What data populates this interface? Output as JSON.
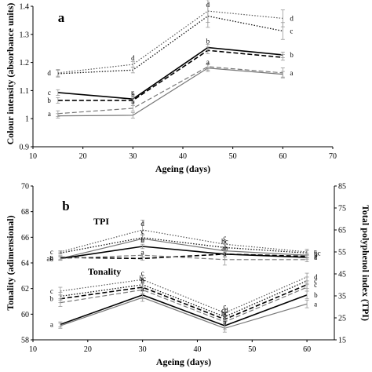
{
  "chart_data": [
    {
      "type": "line",
      "panel_label": "a",
      "xlabel": "Ageing (days)",
      "ylabel": "Colour intensity (absorbance units)",
      "xlim": [
        10,
        70
      ],
      "ylim": [
        0.9,
        1.4
      ],
      "xticks": [
        10,
        20,
        30,
        40,
        50,
        60,
        70
      ],
      "yticks": [
        0.9,
        1.0,
        1.1,
        1.2,
        1.3,
        1.4
      ],
      "ytick_labels": [
        "0.9",
        "1",
        "1.1",
        "1.2",
        "1.3",
        "1.4"
      ],
      "x": [
        15,
        30,
        45,
        60
      ],
      "series": [
        {
          "values": [
            1.163,
            1.193,
            1.383,
            1.357
          ],
          "err": [
            0.012,
            0.01,
            0.04,
            0.03
          ],
          "letters": [
            "d",
            "d",
            "d",
            "d"
          ],
          "color": "#555555",
          "dash": "1.5,2",
          "width": 1.2
        },
        {
          "values": [
            1.16,
            1.173,
            1.365,
            1.312
          ],
          "err": [
            0.012,
            0.01,
            0.04,
            0.03
          ],
          "letters": [
            "",
            "",
            "",
            "c"
          ],
          "color": "#111111",
          "dash": "1.5,2",
          "width": 1.3
        },
        {
          "values": [
            1.093,
            1.07,
            1.253,
            1.227
          ],
          "err": [
            0.01,
            0.008,
            0.012,
            0.01
          ],
          "letters": [
            "c",
            "c",
            "b",
            "b"
          ],
          "color": "#000000",
          "dash": "",
          "width": 1.6
        },
        {
          "values": [
            1.065,
            1.065,
            1.243,
            1.218
          ],
          "err": [
            0.01,
            0.008,
            0.012,
            0.01
          ],
          "letters": [
            "b",
            "b",
            "",
            ""
          ],
          "color": "#000000",
          "dash": "6,3",
          "width": 1.6
        },
        {
          "values": [
            1.018,
            1.037,
            1.185,
            1.163
          ],
          "err": [
            0.01,
            0.01,
            0.012,
            0.018
          ],
          "letters": [
            "a",
            "a",
            "",
            "a"
          ],
          "color": "#777777",
          "dash": "6,3",
          "width": 1.2
        },
        {
          "values": [
            1.01,
            1.012,
            1.18,
            1.158
          ],
          "err": [
            0.008,
            0.01,
            0.012,
            0.01
          ],
          "letters": [
            "",
            "",
            "a",
            ""
          ],
          "color": "#777777",
          "dash": "",
          "width": 1.2
        }
      ]
    },
    {
      "type": "line",
      "panel_label": "b",
      "xlabel": "Ageing (days)",
      "ylabel": "Tonality (adimensional)",
      "y2label": "Total polyphenol index (TPI)",
      "xlim": [
        10,
        65
      ],
      "ylim": [
        58,
        70
      ],
      "y2lim": [
        15,
        85
      ],
      "xticks": [
        10,
        20,
        30,
        40,
        50,
        60
      ],
      "yticks": [
        58,
        60,
        62,
        64,
        66,
        68,
        70
      ],
      "y2ticks": [
        15,
        25,
        35,
        45,
        55,
        65,
        75,
        85
      ],
      "group_labels": {
        "tpi": "TPI",
        "tonality": "Tonality"
      },
      "x": [
        15,
        30,
        45,
        60
      ],
      "tpi_series": [
        {
          "values": [
            55.0,
            65.0,
            58.5,
            55.0
          ],
          "err": [
            0.5,
            4.5,
            1.5,
            1.2
          ],
          "letters": [
            "c",
            "d",
            "c",
            "c"
          ],
          "color": "#555555",
          "dash": "1.5,2",
          "width": 1.2
        },
        {
          "values": [
            54.5,
            61.5,
            57.0,
            54.5
          ],
          "err": [
            0.5,
            1.5,
            1.5,
            1.0
          ],
          "letters": [
            "",
            "c",
            "bc",
            "bc"
          ],
          "color": "#111111",
          "dash": "1.5,2",
          "width": 1.3
        },
        {
          "values": [
            52.0,
            61.0,
            55.5,
            53.5
          ],
          "err": [
            0.8,
            1.5,
            1.0,
            1.0
          ],
          "letters": [
            "ab",
            "",
            "",
            "b"
          ],
          "color": "#777777",
          "dash": "",
          "width": 1.2
        },
        {
          "values": [
            52.0,
            57.5,
            54.0,
            52.5
          ],
          "err": [
            0.8,
            1.0,
            1.5,
            1.0
          ],
          "letters": [
            "a",
            "b",
            "",
            "a"
          ],
          "color": "#000000",
          "dash": "",
          "width": 1.6
        },
        {
          "values": [
            52.5,
            52.0,
            54.0,
            53.0
          ],
          "err": [
            0.8,
            0.8,
            1.0,
            0.8
          ],
          "letters": [
            "a",
            "a",
            "ab",
            "a"
          ],
          "color": "#000000",
          "dash": "6,3",
          "width": 1.6
        },
        {
          "values": [
            52.0,
            53.5,
            51.5,
            51.5
          ],
          "err": [
            0.8,
            1.0,
            2.5,
            1.0
          ],
          "letters": [
            "",
            "",
            "a",
            ""
          ],
          "color": "#777777",
          "dash": "6,3",
          "width": 1.2
        }
      ],
      "tonality_series": [
        {
          "values": [
            61.8,
            62.7,
            60.1,
            62.9
          ],
          "err": [
            0.3,
            0.3,
            0.3,
            0.3
          ],
          "letters": [
            "c",
            "c",
            "c",
            "d"
          ],
          "color": "#555555",
          "dash": "1.5,2",
          "width": 1.2
        },
        {
          "values": [
            61.4,
            62.3,
            59.8,
            62.6
          ],
          "err": [
            0.3,
            0.3,
            0.3,
            0.3
          ],
          "letters": [
            "",
            "bc",
            "cd",
            "c"
          ],
          "color": "#111111",
          "dash": "1.5,2",
          "width": 1.3
        },
        {
          "values": [
            61.2,
            62.1,
            59.6,
            62.3
          ],
          "err": [
            0.3,
            0.3,
            0.3,
            0.3
          ],
          "letters": [
            "b",
            "b",
            "bc",
            "c"
          ],
          "color": "#000000",
          "dash": "6,3",
          "width": 1.6
        },
        {
          "values": [
            60.9,
            61.9,
            59.4,
            62.1
          ],
          "err": [
            0.3,
            0.3,
            0.3,
            0.3
          ],
          "letters": [
            "",
            "",
            "b",
            ""
          ],
          "color": "#777777",
          "dash": "6,3",
          "width": 1.2
        },
        {
          "values": [
            59.2,
            61.5,
            59.1,
            61.5
          ],
          "err": [
            0.2,
            0.3,
            0.3,
            0.3
          ],
          "letters": [
            "a",
            "a",
            "",
            "b"
          ],
          "color": "#000000",
          "dash": "",
          "width": 1.6
        },
        {
          "values": [
            59.1,
            61.3,
            58.9,
            60.8
          ],
          "err": [
            0.2,
            0.3,
            0.3,
            0.3
          ],
          "letters": [
            "",
            "",
            "a",
            "a"
          ],
          "color": "#777777",
          "dash": "",
          "width": 1.2
        }
      ]
    }
  ]
}
